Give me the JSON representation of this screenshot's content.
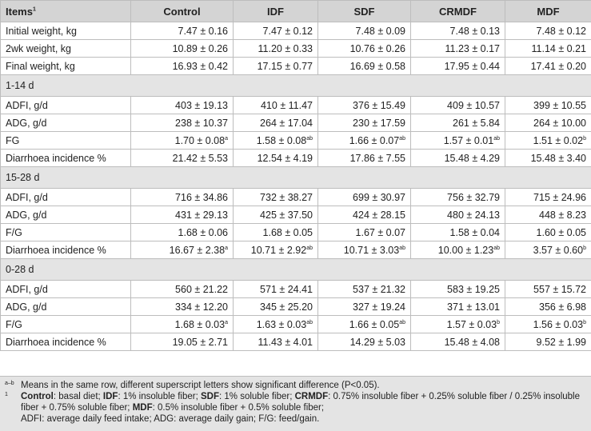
{
  "headers": [
    "Items",
    "Control",
    "IDF",
    "SDF",
    "CRMDF",
    "MDF"
  ],
  "header_sup": "1",
  "blocks": [
    {
      "section": "",
      "rows": [
        {
          "label": "Initial weight, kg",
          "cells": [
            {
              "v": "7.47 ± 0.16"
            },
            {
              "v": "7.47 ± 0.12"
            },
            {
              "v": "7.48 ± 0.09"
            },
            {
              "v": "7.48 ± 0.13"
            },
            {
              "v": "7.48 ± 0.12"
            }
          ]
        },
        {
          "label": "2wk weight, kg",
          "cells": [
            {
              "v": "10.89 ± 0.26"
            },
            {
              "v": "11.20 ± 0.33"
            },
            {
              "v": "10.76 ± 0.26"
            },
            {
              "v": "11.23 ± 0.17"
            },
            {
              "v": "11.14 ± 0.21"
            }
          ]
        },
        {
          "label": "Final weight, kg",
          "cells": [
            {
              "v": "16.93 ± 0.42"
            },
            {
              "v": "17.15 ± 0.77"
            },
            {
              "v": "16.69 ± 0.58"
            },
            {
              "v": "17.95 ± 0.44"
            },
            {
              "v": "17.41 ± 0.20"
            }
          ]
        }
      ]
    },
    {
      "section": "1-14 d",
      "rows": [
        {
          "label": "ADFI, g/d",
          "cells": [
            {
              "v": "403 ± 19.13"
            },
            {
              "v": "410 ± 11.47"
            },
            {
              "v": "376 ± 15.49"
            },
            {
              "v": "409 ± 10.57"
            },
            {
              "v": "399 ± 10.55"
            }
          ]
        },
        {
          "label": "ADG, g/d",
          "cells": [
            {
              "v": "238 ± 10.37"
            },
            {
              "v": "264 ± 17.04"
            },
            {
              "v": "230 ± 17.59"
            },
            {
              "v": "261 ± 5.84"
            },
            {
              "v": "264 ± 10.00"
            }
          ]
        },
        {
          "label": "FG",
          "cells": [
            {
              "v": "1.70 ± 0.08",
              "s": "a"
            },
            {
              "v": "1.58 ± 0.08",
              "s": "ab"
            },
            {
              "v": "1.66 ± 0.07",
              "s": "ab"
            },
            {
              "v": "1.57 ± 0.01",
              "s": "ab"
            },
            {
              "v": "1.51 ± 0.02",
              "s": "b"
            }
          ]
        },
        {
          "label": "Diarrhoea incidence %",
          "cells": [
            {
              "v": "21.42 ± 5.53"
            },
            {
              "v": "12.54 ± 4.19"
            },
            {
              "v": "17.86 ± 7.55"
            },
            {
              "v": "15.48 ± 4.29"
            },
            {
              "v": "15.48 ± 3.40"
            }
          ]
        }
      ]
    },
    {
      "section": "15-28 d",
      "rows": [
        {
          "label": "ADFI, g/d",
          "cells": [
            {
              "v": "716 ± 34.86"
            },
            {
              "v": "732 ± 38.27"
            },
            {
              "v": "699 ± 30.97"
            },
            {
              "v": "756 ± 32.79"
            },
            {
              "v": "715 ± 24.96"
            }
          ]
        },
        {
          "label": "ADG, g/d",
          "cells": [
            {
              "v": "431 ± 29.13"
            },
            {
              "v": "425 ± 37.50"
            },
            {
              "v": "424 ± 28.15"
            },
            {
              "v": "480 ± 24.13"
            },
            {
              "v": "448 ± 8.23"
            }
          ]
        },
        {
          "label": "F/G",
          "cells": [
            {
              "v": "1.68 ± 0.06"
            },
            {
              "v": "1.68 ± 0.05"
            },
            {
              "v": "1.67 ± 0.07"
            },
            {
              "v": "1.58 ± 0.04"
            },
            {
              "v": "1.60 ± 0.05"
            }
          ]
        },
        {
          "label": "Diarrhoea incidence %",
          "cells": [
            {
              "v": "16.67 ± 2.38",
              "s": "a"
            },
            {
              "v": "10.71 ± 2.92",
              "s": "ab"
            },
            {
              "v": "10.71 ± 3.03",
              "s": "ab"
            },
            {
              "v": "10.00 ± 1.23",
              "s": "ab"
            },
            {
              "v": "3.57 ± 0.60",
              "s": "b"
            }
          ]
        }
      ]
    },
    {
      "section": "0-28 d",
      "rows": [
        {
          "label": "ADFI, g/d",
          "cells": [
            {
              "v": "560 ± 21.22"
            },
            {
              "v": "571 ± 24.41"
            },
            {
              "v": "537 ± 21.32"
            },
            {
              "v": "583 ± 19.25"
            },
            {
              "v": "557 ± 15.72"
            }
          ]
        },
        {
          "label": "ADG, g/d",
          "cells": [
            {
              "v": "334 ± 12.20"
            },
            {
              "v": "345 ± 25.20"
            },
            {
              "v": "327 ± 19.24"
            },
            {
              "v": "371 ± 13.01"
            },
            {
              "v": "356 ± 6.98"
            }
          ]
        },
        {
          "label": "F/G",
          "cells": [
            {
              "v": "1.68 ± 0.03",
              "s": "a"
            },
            {
              "v": "1.63 ± 0.03",
              "s": "ab"
            },
            {
              "v": "1.66 ± 0.05",
              "s": "ab"
            },
            {
              "v": "1.57 ± 0.03",
              "s": "b"
            },
            {
              "v": "1.56 ± 0.03",
              "s": "b"
            }
          ]
        },
        {
          "label": "Diarrhoea incidence %",
          "cells": [
            {
              "v": "19.05 ± 2.71"
            },
            {
              "v": "11.43 ± 4.01"
            },
            {
              "v": "14.29 ± 5.03"
            },
            {
              "v": "15.48 ± 4.08"
            },
            {
              "v": "9.52 ± 1.99"
            }
          ]
        }
      ]
    }
  ],
  "footnotes": {
    "note1_mark": "a–b",
    "note1_text": "Means in the same row, different superscript letters show significant difference (P<0.05).",
    "note2_mark": "1",
    "defs": [
      {
        "term": "Control",
        "desc": ": basal diet; "
      },
      {
        "term": "IDF",
        "desc": ": 1% insoluble fiber; "
      },
      {
        "term": "SDF",
        "desc": ": 1% soluble fiber; "
      },
      {
        "term": "CRMDF",
        "desc": ": 0.75% insoluble fiber + 0.25% soluble fiber / 0.25% insoluble fiber + 0.75% soluble fiber; "
      },
      {
        "term": "MDF",
        "desc": ": 0.5% insoluble fiber + 0.5% soluble fiber;"
      }
    ],
    "abbrev": "ADFI: average daily feed intake; ADG: average daily gain; F/G: feed/gain."
  }
}
